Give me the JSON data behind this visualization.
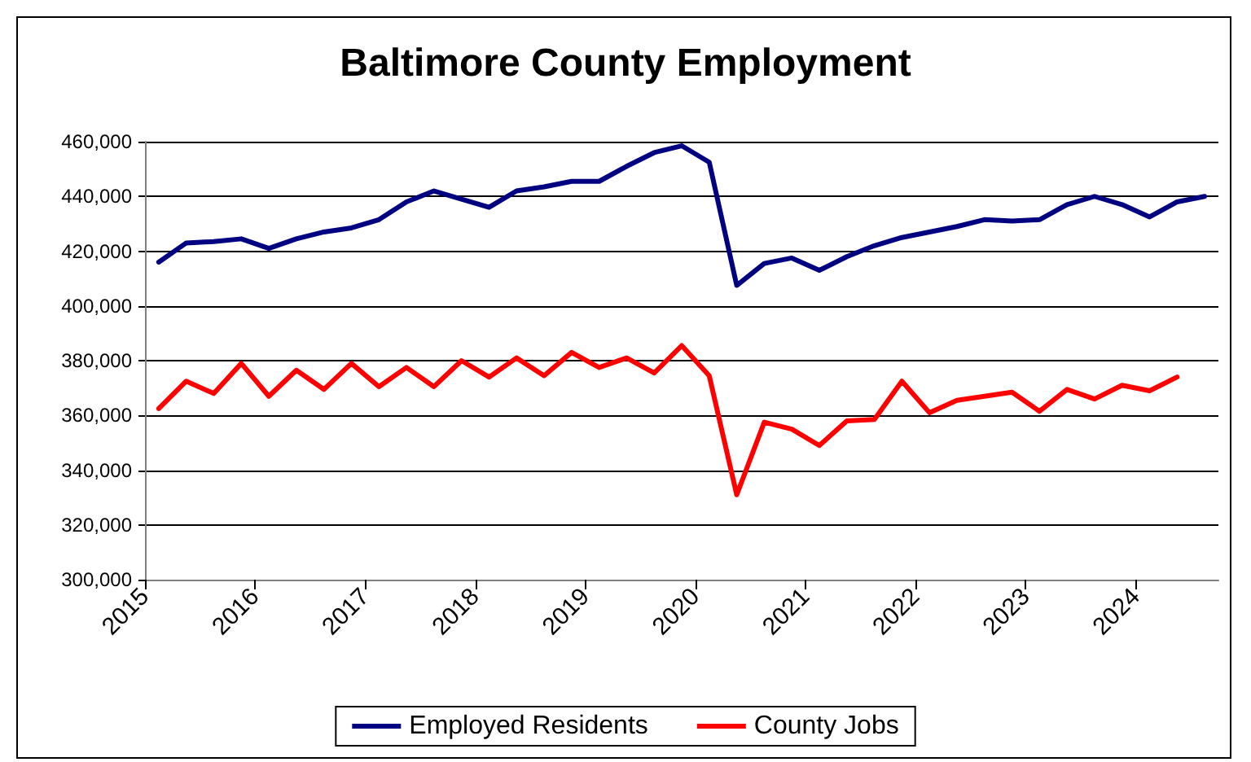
{
  "chart_data": {
    "type": "line",
    "title": "Baltimore County Employment",
    "x": [
      2015.125,
      2015.375,
      2015.625,
      2015.875,
      2016.125,
      2016.375,
      2016.625,
      2016.875,
      2017.125,
      2017.375,
      2017.625,
      2017.875,
      2018.125,
      2018.375,
      2018.625,
      2018.875,
      2019.125,
      2019.375,
      2019.625,
      2019.875,
      2020.125,
      2020.375,
      2020.625,
      2020.875,
      2021.125,
      2021.375,
      2021.625,
      2021.875,
      2022.125,
      2022.375,
      2022.625,
      2022.875,
      2023.125,
      2023.375,
      2023.625,
      2023.875,
      2024.125,
      2024.375,
      2024.625
    ],
    "series": [
      {
        "name": "Employed Residents",
        "color": "#000080",
        "values": [
          416000,
          423000,
          423500,
          424500,
          421000,
          424500,
          427000,
          428500,
          431500,
          438000,
          442000,
          439000,
          436000,
          442000,
          443500,
          445500,
          445500,
          451000,
          456000,
          458500,
          452500,
          407500,
          415500,
          417500,
          413000,
          418000,
          422000,
          425000,
          427000,
          429000,
          431500,
          431000,
          431500,
          437000,
          440000,
          437000,
          432500,
          438000,
          440000
        ]
      },
      {
        "name": "County Jobs",
        "color": "#ff0000",
        "values": [
          362500,
          372500,
          368000,
          379000,
          367000,
          376500,
          369500,
          379000,
          370500,
          377500,
          370500,
          380000,
          374000,
          381000,
          374500,
          383000,
          377500,
          381000,
          375500,
          385500,
          374500,
          331000,
          357500,
          355000,
          349000,
          358000,
          358500,
          372500,
          361000,
          365500,
          367000,
          368500,
          361500,
          369500,
          366000,
          371000,
          369000,
          374000,
          null
        ]
      }
    ],
    "xlim": [
      2015,
      2024.75
    ],
    "xticks": [
      2015,
      2016,
      2017,
      2018,
      2019,
      2020,
      2021,
      2022,
      2023,
      2024
    ],
    "ylim": [
      300000,
      460000
    ],
    "yticks": [
      {
        "value": 300000,
        "label": "300,000"
      },
      {
        "value": 320000,
        "label": "320,000"
      },
      {
        "value": 340000,
        "label": "340,000"
      },
      {
        "value": 360000,
        "label": "360,000"
      },
      {
        "value": 380000,
        "label": "380,000"
      },
      {
        "value": 400000,
        "label": "400,000"
      },
      {
        "value": 420000,
        "label": "420,000"
      },
      {
        "value": 440000,
        "label": "440,000"
      },
      {
        "value": 460000,
        "label": "460,000"
      }
    ],
    "grid": "y",
    "legend": "bottom",
    "marker": "none",
    "line_style": "solid"
  }
}
